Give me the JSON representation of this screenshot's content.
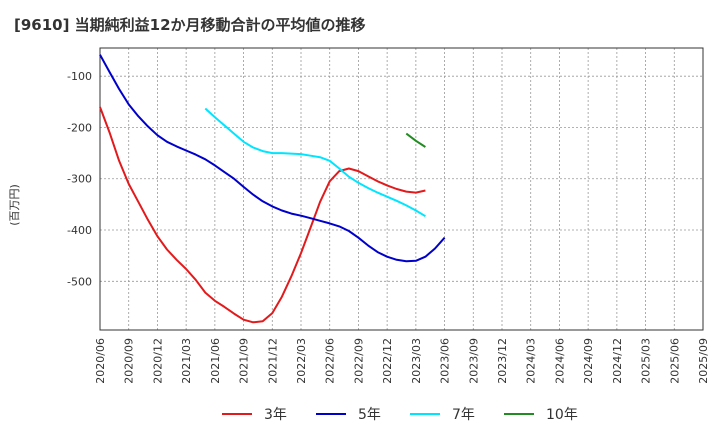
{
  "chart_data": {
    "type": "line",
    "title": "[9610]  当期純利益12か月移動合計の平均値の推移",
    "ylabel": "(百万円)",
    "xlabel": "",
    "ylim": [
      -595,
      -45
    ],
    "yticks": [
      -100,
      -200,
      -300,
      -400,
      -500
    ],
    "ytick_labels": [
      "-100",
      "-200",
      "-300",
      "-400",
      "-500"
    ],
    "x_tick_labels": [
      "2020/06",
      "2020/09",
      "2020/12",
      "2021/03",
      "2021/06",
      "2021/09",
      "2021/12",
      "2022/03",
      "2022/06",
      "2022/09",
      "2022/12",
      "2023/03",
      "2023/06",
      "2023/09",
      "2023/12",
      "2024/03",
      "2024/06",
      "2024/09",
      "2024/12",
      "2025/03",
      "2025/06",
      "2025/09"
    ],
    "grid": true,
    "legend_position": "bottom",
    "series": [
      {
        "name": "3年",
        "color": "#e31a1c",
        "values": [
          -160,
          -210,
          -265,
          -310,
          -345,
          -380,
          -412,
          -438,
          -458,
          -476,
          -497,
          -522,
          -538,
          -550,
          -563,
          -575,
          -580,
          -578,
          -562,
          -530,
          -490,
          -445,
          -395,
          -345,
          -305,
          -285,
          -280,
          -285,
          -295,
          -305,
          -313,
          -320,
          -325,
          -327,
          -323
        ]
      },
      {
        "name": "5年",
        "color": "#0000cc",
        "values": [
          -58,
          -92,
          -125,
          -155,
          -178,
          -198,
          -215,
          -228,
          -237,
          -245,
          -253,
          -262,
          -274,
          -287,
          -300,
          -316,
          -331,
          -344,
          -354,
          -362,
          -368,
          -372,
          -377,
          -382,
          -387,
          -393,
          -402,
          -415,
          -430,
          -443,
          -452,
          -458,
          -461,
          -460,
          -452,
          -436,
          -415
        ]
      },
      {
        "name": "7年",
        "color": "#00e5ff",
        "start_index": 11,
        "values": [
          -163,
          -180,
          -196,
          -212,
          -228,
          -239,
          -246,
          -250,
          -250,
          -251,
          -252,
          -255,
          -258,
          -265,
          -280,
          -296,
          -308,
          -318,
          -327,
          -335,
          -343,
          -352,
          -362,
          -373
        ]
      },
      {
        "name": "10年",
        "color": "#228b22",
        "start_index": 32,
        "values": [
          -212,
          -226,
          -238
        ]
      }
    ]
  }
}
